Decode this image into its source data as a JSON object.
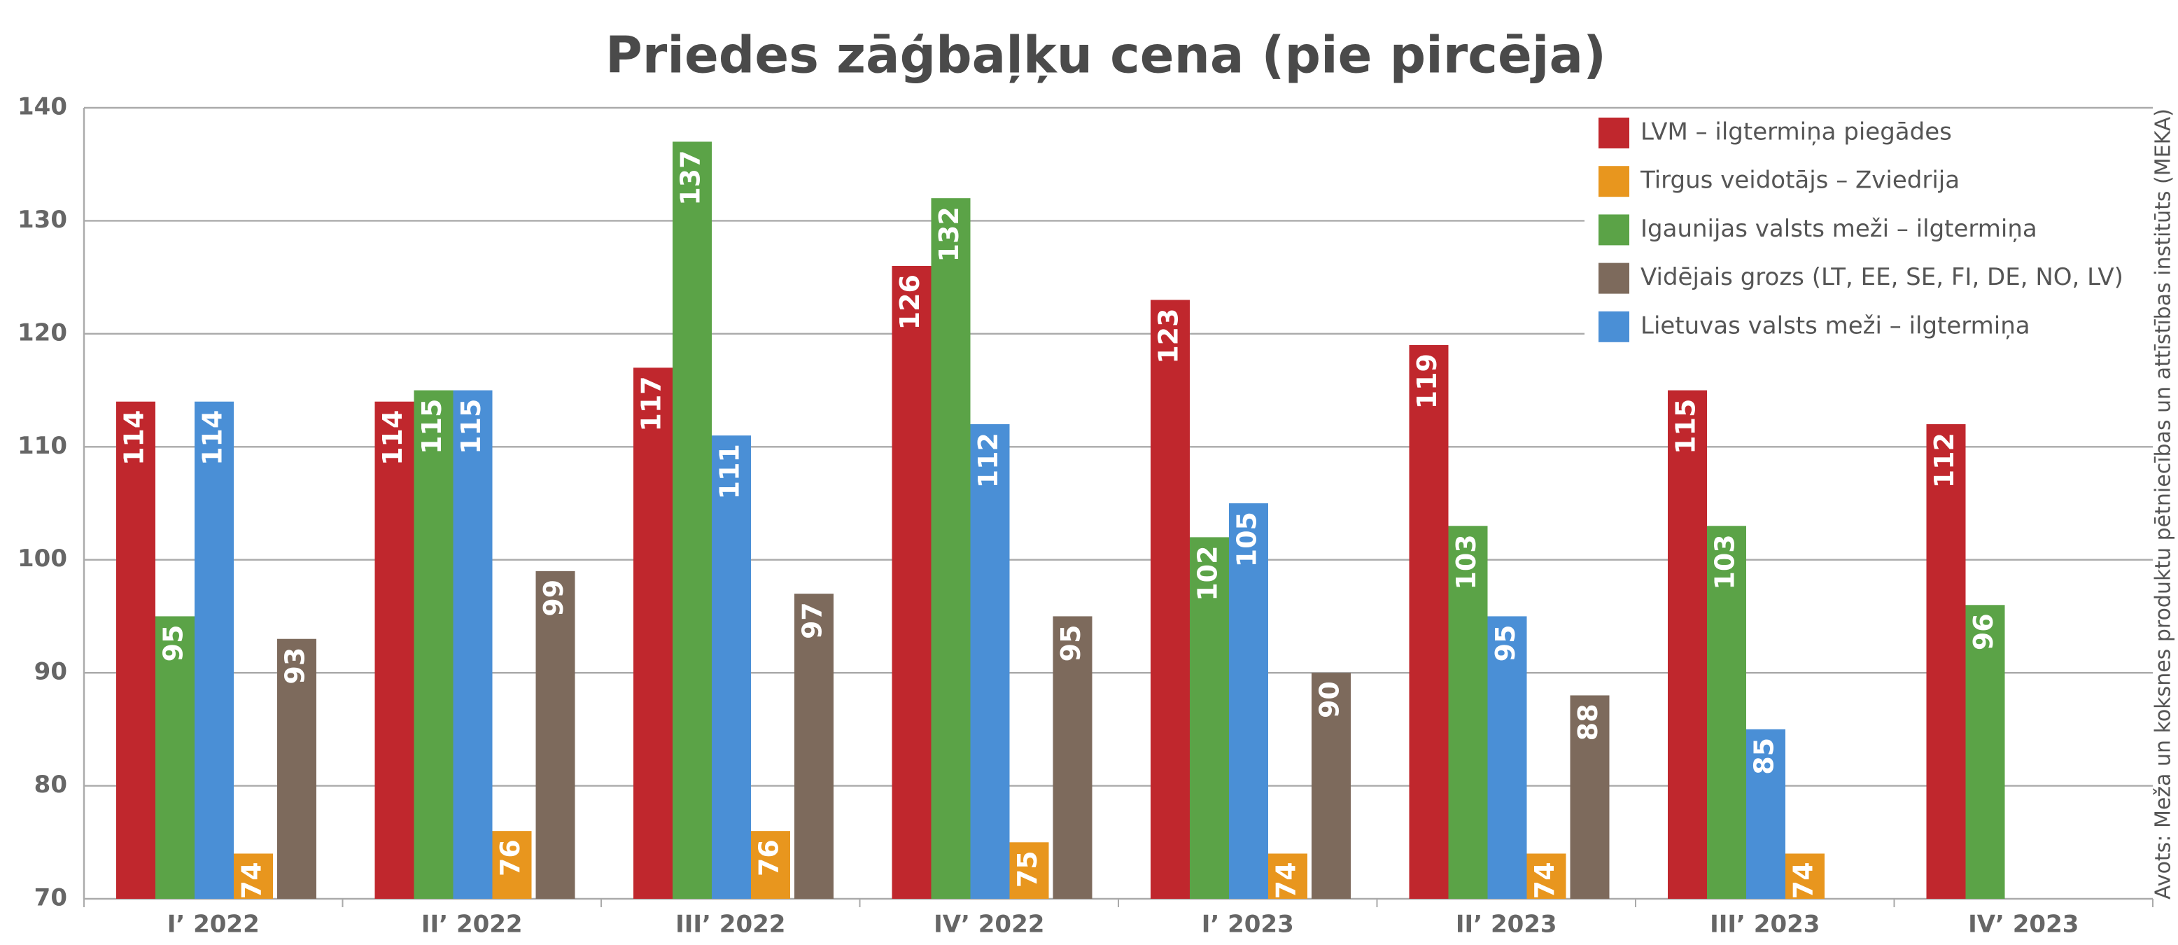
{
  "chart_data": {
    "type": "bar",
    "title": "Priedes zāģbaļķu cena (pie pircēja)",
    "source": "Avots: Meža un koksnes produktu pētniecības un attīstības institūts (MEKA)",
    "categories": [
      "I’ 2022",
      "II’ 2022",
      "III’ 2022",
      "IV’ 2022",
      "I’ 2023",
      "II’ 2023",
      "III’ 2023",
      "IV’ 2023"
    ],
    "series": [
      {
        "name": "LVM – ilgtermiņa piegādes",
        "color": "#c0272d",
        "values": [
          114,
          114,
          117,
          126,
          123,
          119,
          115,
          112
        ]
      },
      {
        "name": "Tirgus veidotājs – Zviedrija",
        "color": "#e8961e",
        "values": [
          74,
          76,
          76,
          75,
          74,
          74,
          74,
          null
        ]
      },
      {
        "name": "Igaunijas valsts meži – ilgtermiņa",
        "color": "#5ba347",
        "values": [
          95,
          115,
          137,
          132,
          102,
          103,
          103,
          96
        ]
      },
      {
        "name": "Vidējais grozs (LT, EE, SE, FI, DE, NO, LV)",
        "color": "#7d6a5c",
        "values": [
          93,
          99,
          97,
          95,
          90,
          88,
          null,
          null
        ]
      },
      {
        "name": "Lietuvas valsts meži – ilgtermiņa",
        "color": "#4a8fd6",
        "values": [
          114,
          115,
          111,
          112,
          105,
          95,
          85,
          null
        ]
      }
    ],
    "ylim": [
      70,
      140
    ],
    "yticks": [
      70,
      80,
      90,
      100,
      110,
      120,
      130,
      140
    ],
    "grid": true,
    "legend": "top-right"
  }
}
